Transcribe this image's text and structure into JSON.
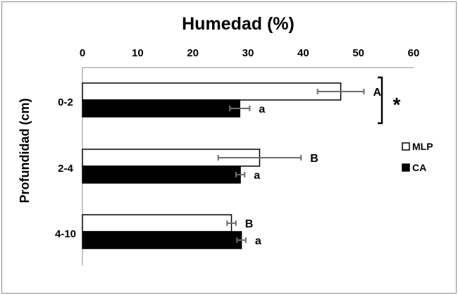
{
  "chart_data": {
    "type": "bar",
    "orientation": "horizontal",
    "title": "Humedad (%)",
    "xlabel": "",
    "ylabel": "Profundidad (cm)",
    "categories": [
      "0-2",
      "2-4",
      "4-10"
    ],
    "xlim": [
      0,
      60
    ],
    "xticks": [
      "0",
      "10",
      "20",
      "30",
      "40",
      "50",
      "60"
    ],
    "axis_position": "top",
    "grid": false,
    "legend_position": "right",
    "series": [
      {
        "name": "MLP",
        "color": "#ffffff",
        "values": [
          46.8,
          32.1,
          27.0
        ],
        "errors": [
          4.2,
          7.5,
          0.8
        ],
        "letters": [
          "A",
          "B",
          "B"
        ]
      },
      {
        "name": "CA",
        "color": "#000000",
        "values": [
          28.5,
          28.6,
          28.8
        ],
        "errors": [
          1.8,
          0.8,
          0.8
        ],
        "letters": [
          "a",
          "a",
          "a"
        ]
      }
    ],
    "annotations": [
      {
        "text": "*",
        "category": "0-2",
        "meaning": "significant difference bracket"
      }
    ]
  }
}
